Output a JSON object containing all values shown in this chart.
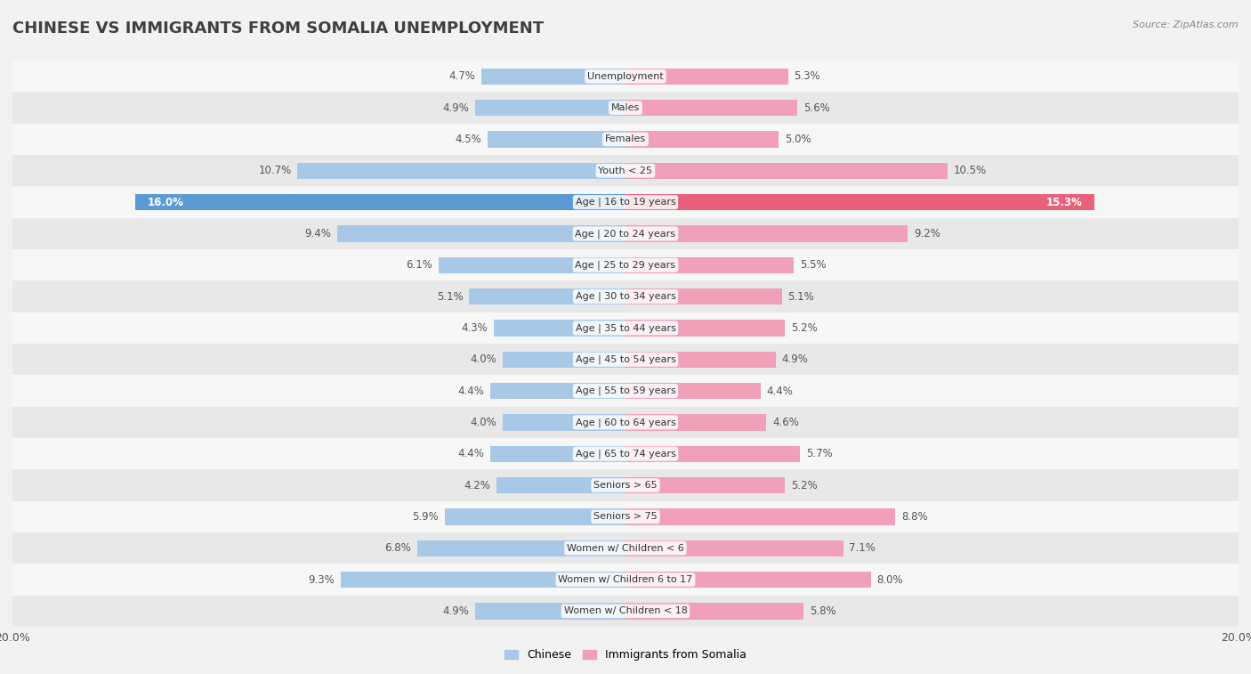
{
  "title": "CHINESE VS IMMIGRANTS FROM SOMALIA UNEMPLOYMENT",
  "source": "Source: ZipAtlas.com",
  "categories": [
    "Unemployment",
    "Males",
    "Females",
    "Youth < 25",
    "Age | 16 to 19 years",
    "Age | 20 to 24 years",
    "Age | 25 to 29 years",
    "Age | 30 to 34 years",
    "Age | 35 to 44 years",
    "Age | 45 to 54 years",
    "Age | 55 to 59 years",
    "Age | 60 to 64 years",
    "Age | 65 to 74 years",
    "Seniors > 65",
    "Seniors > 75",
    "Women w/ Children < 6",
    "Women w/ Children 6 to 17",
    "Women w/ Children < 18"
  ],
  "chinese_values": [
    4.7,
    4.9,
    4.5,
    10.7,
    16.0,
    9.4,
    6.1,
    5.1,
    4.3,
    4.0,
    4.4,
    4.0,
    4.4,
    4.2,
    5.9,
    6.8,
    9.3,
    4.9
  ],
  "somalia_values": [
    5.3,
    5.6,
    5.0,
    10.5,
    15.3,
    9.2,
    5.5,
    5.1,
    5.2,
    4.9,
    4.4,
    4.6,
    5.7,
    5.2,
    8.8,
    7.1,
    8.0,
    5.8
  ],
  "chinese_color": "#a8c8e8",
  "somalia_color": "#f0a0b8",
  "chinese_highlight_color": "#5b9bd5",
  "somalia_highlight_color": "#e8607a",
  "background_color": "#f2f2f2",
  "row_light_color": "#f7f7f7",
  "row_dark_color": "#e8e8e8",
  "label_color": "#555555",
  "axis_limit": 20.0,
  "bar_height": 0.52
}
